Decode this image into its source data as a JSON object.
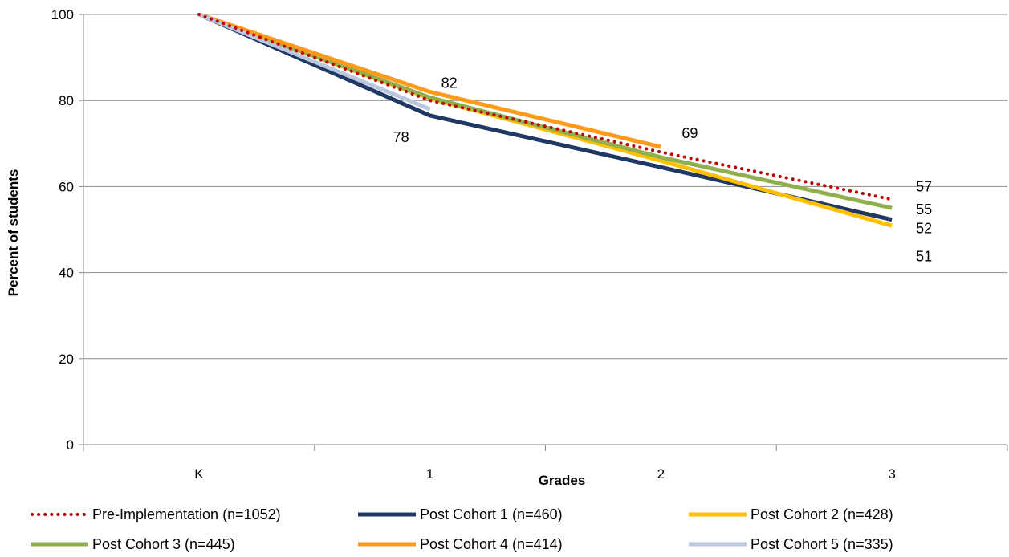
{
  "chart_data": {
    "type": "line",
    "title": "",
    "xlabel": "Grades",
    "ylabel": "Percent of students",
    "categories": [
      "K",
      "1",
      "2",
      "3"
    ],
    "ylim": [
      0,
      100
    ],
    "yticks": [
      "0",
      "20",
      "40",
      "60",
      "80",
      "100"
    ],
    "grid": true,
    "legend_position": "bottom",
    "series": [
      {
        "name": "Pre-Implementation (n=1052)",
        "color": "#c00000",
        "dash": "dotted",
        "values": [
          100,
          80,
          68,
          57
        ]
      },
      {
        "name": "Post Cohort 1 (n=460)",
        "color": "#1f3864",
        "dash": "solid",
        "values": [
          100,
          76.5,
          64.5,
          52.3
        ]
      },
      {
        "name": "Post Cohort 2 (n=428)",
        "color": "#ffc000",
        "dash": "solid",
        "values": [
          100,
          80.5,
          66,
          50.9
        ]
      },
      {
        "name": "Post Cohort 3 (n=445)",
        "color": "#8fb04d",
        "dash": "solid",
        "values": [
          100,
          80.7,
          66.8,
          55
        ]
      },
      {
        "name": "Post Cohort 4 (n=414)",
        "color": "#ff9a1a",
        "dash": "solid",
        "values": [
          100,
          82,
          69.2,
          null
        ]
      },
      {
        "name": "Post Cohort 5 (n=335)",
        "color": "#b9c7df",
        "dash": "solid",
        "values": [
          100,
          78,
          null,
          null
        ]
      }
    ],
    "data_labels": [
      {
        "text": "82",
        "category": "1",
        "value": 82
      },
      {
        "text": "78",
        "category": "1",
        "value": 78
      },
      {
        "text": "69",
        "category": "2",
        "value": 69
      },
      {
        "text": "57",
        "category": "3",
        "value": 57
      },
      {
        "text": "55",
        "category": "3",
        "value": 55
      },
      {
        "text": "52",
        "category": "3",
        "value": 52
      },
      {
        "text": "51",
        "category": "3",
        "value": 51
      }
    ]
  }
}
